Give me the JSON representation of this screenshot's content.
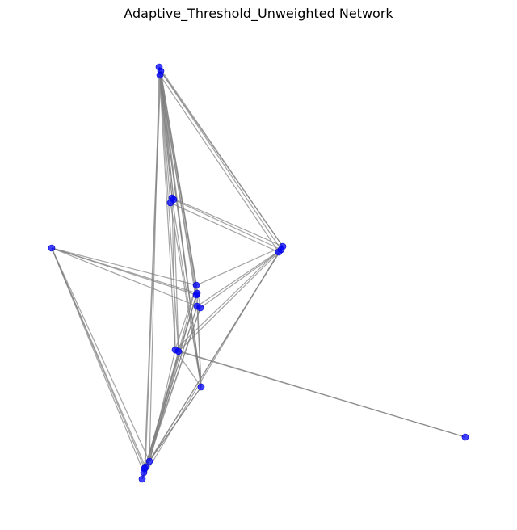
{
  "figure": {
    "title": "Adaptive_Threshold_Unweighted Network"
  },
  "colors": {
    "node": "#0000ff",
    "edge": "#808080",
    "background": "#ffffff"
  },
  "chart_data": {
    "type": "network",
    "title": "Adaptive_Threshold_Unweighted Network",
    "nodes": [
      {
        "id": "A1"
      },
      {
        "id": "A2"
      },
      {
        "id": "A3"
      },
      {
        "id": "B1"
      },
      {
        "id": "B2"
      },
      {
        "id": "B3"
      },
      {
        "id": "C1"
      },
      {
        "id": "C2"
      },
      {
        "id": "C3"
      },
      {
        "id": "D"
      },
      {
        "id": "E1"
      },
      {
        "id": "E2"
      },
      {
        "id": "E3"
      },
      {
        "id": "E4"
      },
      {
        "id": "E5"
      },
      {
        "id": "F1"
      },
      {
        "id": "F2"
      },
      {
        "id": "G"
      },
      {
        "id": "H1"
      },
      {
        "id": "H2"
      },
      {
        "id": "H3"
      },
      {
        "id": "H4"
      },
      {
        "id": "H5"
      },
      {
        "id": "I"
      }
    ],
    "edges": [
      [
        "A1",
        "B1"
      ],
      [
        "A2",
        "B2"
      ],
      [
        "A3",
        "B3"
      ],
      [
        "A1",
        "B2"
      ],
      [
        "A3",
        "B1"
      ],
      [
        "A1",
        "C1"
      ],
      [
        "A2",
        "C2"
      ],
      [
        "A3",
        "C3"
      ],
      [
        "A2",
        "C1"
      ],
      [
        "A1",
        "E1"
      ],
      [
        "A2",
        "E2"
      ],
      [
        "A3",
        "E3"
      ],
      [
        "A1",
        "E4"
      ],
      [
        "A2",
        "E5"
      ],
      [
        "A1",
        "F1"
      ],
      [
        "A3",
        "F2"
      ],
      [
        "A2",
        "G"
      ],
      [
        "A3",
        "G"
      ],
      [
        "A1",
        "G"
      ],
      [
        "A1",
        "H1"
      ],
      [
        "A2",
        "H2"
      ],
      [
        "A3",
        "H3"
      ],
      [
        "B1",
        "C1"
      ],
      [
        "B2",
        "C2"
      ],
      [
        "B3",
        "C3"
      ],
      [
        "B1",
        "F1"
      ],
      [
        "B2",
        "F2"
      ],
      [
        "B1",
        "G"
      ],
      [
        "B3",
        "G"
      ],
      [
        "C1",
        "E1"
      ],
      [
        "C2",
        "E4"
      ],
      [
        "C3",
        "E5"
      ],
      [
        "C1",
        "F1"
      ],
      [
        "C2",
        "F2"
      ],
      [
        "C1",
        "H1"
      ],
      [
        "C2",
        "H2"
      ],
      [
        "C3",
        "H5"
      ],
      [
        "D",
        "E1"
      ],
      [
        "D",
        "E2"
      ],
      [
        "D",
        "E3"
      ],
      [
        "D",
        "E4"
      ],
      [
        "D",
        "H1"
      ],
      [
        "D",
        "H2"
      ],
      [
        "D",
        "H3"
      ],
      [
        "D",
        "H4"
      ],
      [
        "E1",
        "H1"
      ],
      [
        "E2",
        "H2"
      ],
      [
        "E3",
        "H3"
      ],
      [
        "E4",
        "H4"
      ],
      [
        "E5",
        "H5"
      ],
      [
        "E1",
        "F1"
      ],
      [
        "E4",
        "G"
      ],
      [
        "E2",
        "G"
      ],
      [
        "E3",
        "H1"
      ],
      [
        "E4",
        "H2"
      ],
      [
        "E5",
        "H3"
      ],
      [
        "F1",
        "H1"
      ],
      [
        "F2",
        "H2"
      ],
      [
        "F1",
        "G"
      ],
      [
        "F1",
        "I"
      ],
      [
        "F2",
        "I"
      ],
      [
        "G",
        "H1"
      ],
      [
        "G",
        "H2"
      ]
    ]
  }
}
